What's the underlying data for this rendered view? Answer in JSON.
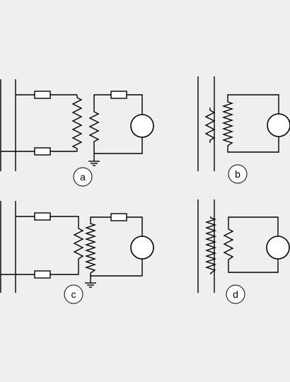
{
  "panels": [
    {
      "id": "a",
      "label": "a"
    },
    {
      "id": "b",
      "label": "b"
    },
    {
      "id": "c",
      "label": "c"
    },
    {
      "id": "d",
      "label": "d"
    }
  ]
}
